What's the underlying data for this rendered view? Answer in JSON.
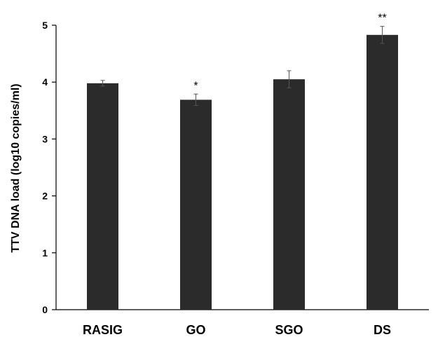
{
  "chart_data": {
    "type": "bar",
    "title": "",
    "xlabel": "",
    "ylabel": "TTV DNA load (log10 copies/ml)",
    "ylim": [
      0,
      5
    ],
    "yticks": [
      0,
      1,
      2,
      3,
      4,
      5
    ],
    "categories": [
      "RASIG",
      "GO",
      "SGO",
      "DS"
    ],
    "values": [
      3.98,
      3.69,
      4.05,
      4.83
    ],
    "error": [
      0.05,
      0.1,
      0.15,
      0.15
    ],
    "significance": [
      "",
      "*",
      "",
      "**"
    ],
    "bar_color": "#2b2b2b",
    "grid": false,
    "legend": "none"
  }
}
